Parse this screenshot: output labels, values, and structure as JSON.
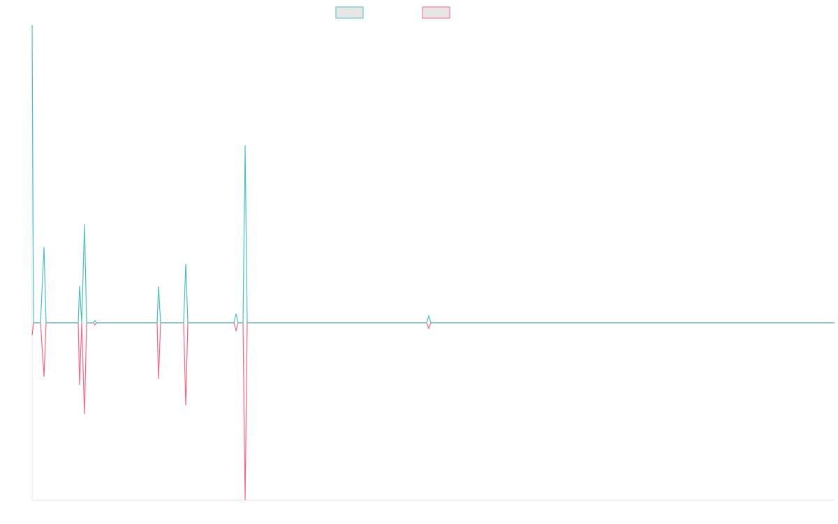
{
  "chart_data": {
    "type": "line",
    "x": [
      0,
      2,
      12,
      17,
      20,
      66,
      68,
      71,
      75,
      78,
      88,
      90,
      92,
      179,
      181,
      184,
      217,
      220,
      223,
      289,
      292,
      295,
      302,
      305,
      308,
      565,
      568,
      571,
      1149
    ],
    "xlim": [
      0,
      1149
    ],
    "ylim": [
      -2.54,
      4.26
    ],
    "series": [
      {
        "color": "#ff6384",
        "values": [
          -0.18,
          0,
          0,
          -0.77,
          0,
          0,
          -0.89,
          0,
          -1.31,
          0,
          0,
          -0.03,
          0,
          0,
          -0.8,
          0,
          0,
          -1.18,
          0,
          0,
          -0.11,
          0,
          0,
          -2.54,
          0,
          0,
          -0.08,
          0,
          0
        ]
      },
      {
        "color": "#4bc0c0",
        "values": [
          4.26,
          0,
          0,
          1.08,
          0,
          0,
          0.53,
          0,
          1.41,
          0,
          0,
          0.03,
          0,
          0,
          0.52,
          0,
          0,
          0.84,
          0,
          0,
          0.13,
          0,
          0,
          2.54,
          0,
          0,
          0.1,
          0,
          0
        ]
      }
    ]
  }
}
